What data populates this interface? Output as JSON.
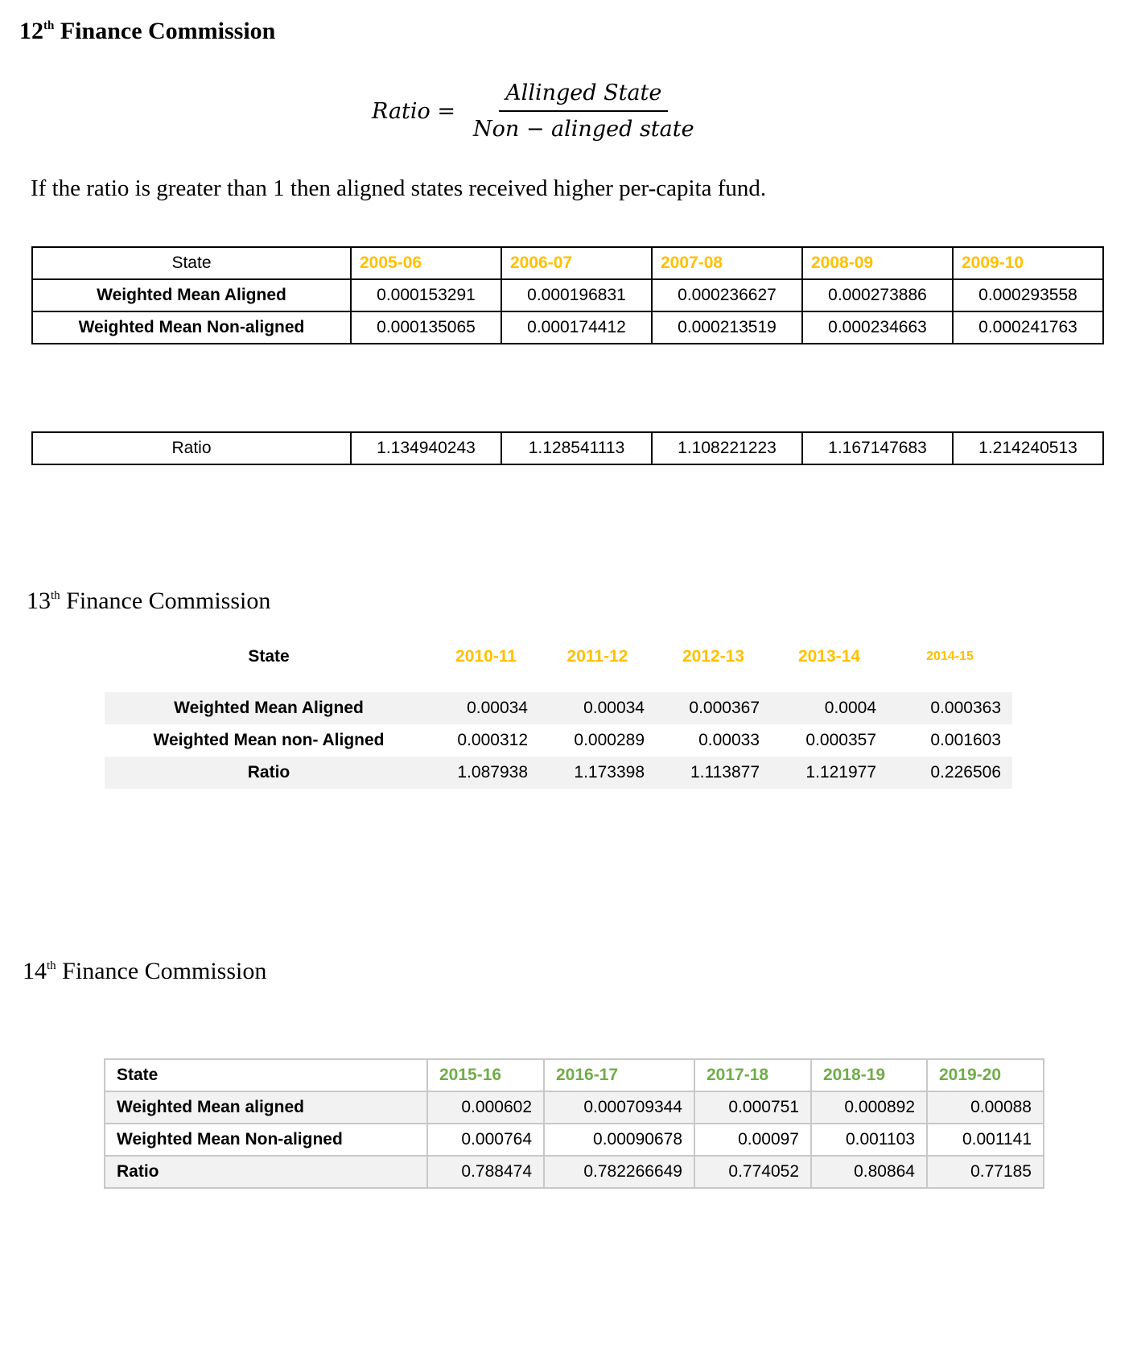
{
  "fc12": {
    "title_num": "12",
    "title_sup": "th",
    "title_rest": " Finance Commission",
    "formula": {
      "lhs": "Ratio =",
      "numerator": "Allinged State",
      "denominator": "Non − alinged state"
    },
    "sentence": "If the ratio is greater than 1 then aligned states received higher per-capita fund.",
    "header": [
      "State",
      "2005-06",
      "2006-07",
      "2007-08",
      "2008-09",
      "2009-10"
    ],
    "rows": [
      [
        "Weighted Mean Aligned",
        "0.000153291",
        "0.000196831",
        "0.000236627",
        "0.000273886",
        "0.000293558"
      ],
      [
        "Weighted Mean Non-aligned",
        "0.000135065",
        "0.000174412",
        "0.000213519",
        "0.000234663",
        "0.000241763"
      ]
    ],
    "ratio_row": [
      "Ratio",
      "1.134940243",
      "1.128541113",
      "1.108221223",
      "1.167147683",
      "1.214240513"
    ],
    "year_color": "#ffc000"
  },
  "fc13": {
    "title_num": "13",
    "title_sup": "th",
    "title_rest": " Finance Commission",
    "header": [
      "State",
      "2010-11",
      "2011-12",
      "2012-13",
      "2013-14",
      "2014-15"
    ],
    "rows": [
      [
        "Weighted Mean Aligned",
        "0.00034",
        "0.00034",
        "0.000367",
        "0.0004",
        "0.000363"
      ],
      [
        "Weighted Mean non- Aligned",
        "0.000312",
        "0.000289",
        "0.00033",
        "0.000357",
        "0.001603"
      ],
      [
        "Ratio",
        "1.087938",
        "1.173398",
        "1.113877",
        "1.121977",
        "0.226506"
      ]
    ],
    "year_color": "#ffc000"
  },
  "fc14": {
    "title_num": "14",
    "title_sup": "th",
    "title_rest": " Finance Commission",
    "header": [
      "State",
      "2015-16",
      "2016-17",
      "2017-18",
      "2018-19",
      "2019-20"
    ],
    "rows": [
      [
        "Weighted Mean aligned",
        "0.000602",
        "0.000709344",
        "0.000751",
        "0.000892",
        "0.00088"
      ],
      [
        "Weighted Mean Non-aligned",
        "0.000764",
        "0.00090678",
        "0.00097",
        "0.001103",
        "0.001141"
      ],
      [
        "Ratio",
        "0.788474",
        "0.782266649",
        "0.774052",
        "0.80864",
        "0.77185"
      ]
    ],
    "year_color": "#70ad47"
  }
}
